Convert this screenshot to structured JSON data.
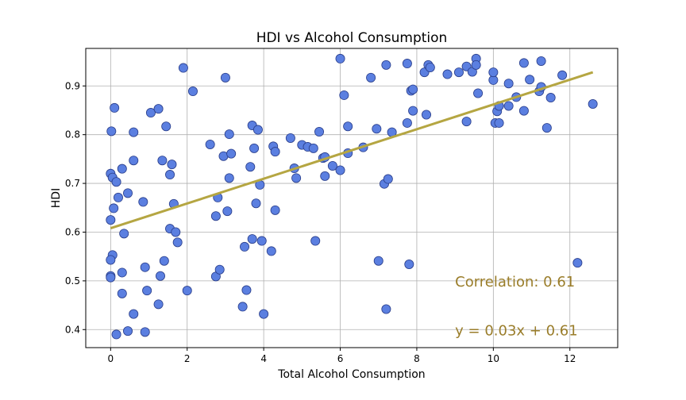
{
  "chart_data": {
    "type": "scatter",
    "title": "HDI vs Alcohol Consumption",
    "xlabel": "Total Alcohol Consumption",
    "ylabel": "HDI",
    "xlim": [
      -0.65,
      13.25
    ],
    "ylim": [
      0.363,
      0.977
    ],
    "xticks": [
      0,
      2,
      4,
      6,
      8,
      10,
      12
    ],
    "yticks": [
      0.4,
      0.5,
      0.6,
      0.7,
      0.8,
      0.9
    ],
    "grid": true,
    "colors": {
      "point_fill": "#5b7fe0",
      "point_edge": "#2a3e8a",
      "fit_line": "#b5a642",
      "annotation": "#9a7d2a"
    },
    "regression": {
      "slope": 0.0254,
      "intercept": 0.608,
      "x_range": [
        0,
        12.6
      ]
    },
    "annotations": [
      {
        "text": "Correlation:  0.61",
        "x": 9.0,
        "y": 0.498
      },
      {
        "text": "y = 0.03x + 0.61",
        "x": 9.0,
        "y": 0.398
      }
    ],
    "points": [
      [
        0.1,
        0.855
      ],
      [
        0.02,
        0.807
      ],
      [
        0.0,
        0.72
      ],
      [
        0.05,
        0.712
      ],
      [
        0.15,
        0.703
      ],
      [
        0.2,
        0.671
      ],
      [
        0.08,
        0.649
      ],
      [
        0.0,
        0.625
      ],
      [
        0.05,
        0.553
      ],
      [
        0.0,
        0.543
      ],
      [
        0.0,
        0.51
      ],
      [
        0.0,
        0.507
      ],
      [
        0.3,
        0.517
      ],
      [
        0.15,
        0.39
      ],
      [
        0.3,
        0.474
      ],
      [
        0.35,
        0.597
      ],
      [
        0.3,
        0.73
      ],
      [
        0.45,
        0.68
      ],
      [
        0.45,
        0.397
      ],
      [
        0.6,
        0.805
      ],
      [
        0.6,
        0.747
      ],
      [
        0.6,
        0.432
      ],
      [
        0.85,
        0.662
      ],
      [
        0.9,
        0.528
      ],
      [
        0.9,
        0.395
      ],
      [
        0.95,
        0.48
      ],
      [
        1.05,
        0.845
      ],
      [
        1.25,
        0.853
      ],
      [
        1.25,
        0.452
      ],
      [
        1.35,
        0.747
      ],
      [
        1.3,
        0.51
      ],
      [
        1.4,
        0.541
      ],
      [
        1.45,
        0.817
      ],
      [
        1.55,
        0.718
      ],
      [
        1.6,
        0.739
      ],
      [
        1.55,
        0.607
      ],
      [
        1.65,
        0.658
      ],
      [
        1.7,
        0.6
      ],
      [
        1.75,
        0.579
      ],
      [
        1.9,
        0.937
      ],
      [
        2.0,
        0.48
      ],
      [
        2.15,
        0.889
      ],
      [
        2.6,
        0.78
      ],
      [
        2.75,
        0.633
      ],
      [
        2.75,
        0.509
      ],
      [
        2.8,
        0.671
      ],
      [
        2.85,
        0.523
      ],
      [
        2.95,
        0.756
      ],
      [
        3.0,
        0.917
      ],
      [
        3.05,
        0.643
      ],
      [
        3.1,
        0.801
      ],
      [
        3.1,
        0.711
      ],
      [
        3.15,
        0.761
      ],
      [
        3.45,
        0.447
      ],
      [
        3.5,
        0.57
      ],
      [
        3.55,
        0.481
      ],
      [
        3.65,
        0.734
      ],
      [
        3.7,
        0.819
      ],
      [
        3.7,
        0.586
      ],
      [
        3.75,
        0.772
      ],
      [
        3.8,
        0.659
      ],
      [
        3.85,
        0.81
      ],
      [
        3.9,
        0.697
      ],
      [
        3.95,
        0.582
      ],
      [
        4.0,
        0.432
      ],
      [
        4.2,
        0.561
      ],
      [
        4.25,
        0.776
      ],
      [
        4.3,
        0.765
      ],
      [
        4.3,
        0.645
      ],
      [
        4.7,
        0.793
      ],
      [
        4.8,
        0.731
      ],
      [
        4.85,
        0.711
      ],
      [
        5.0,
        0.779
      ],
      [
        5.15,
        0.775
      ],
      [
        5.3,
        0.772
      ],
      [
        5.35,
        0.582
      ],
      [
        5.45,
        0.806
      ],
      [
        5.55,
        0.752
      ],
      [
        5.6,
        0.754
      ],
      [
        5.6,
        0.715
      ],
      [
        5.8,
        0.736
      ],
      [
        6.0,
        0.956
      ],
      [
        6.0,
        0.727
      ],
      [
        6.1,
        0.881
      ],
      [
        6.2,
        0.817
      ],
      [
        6.2,
        0.762
      ],
      [
        6.6,
        0.774
      ],
      [
        6.8,
        0.917
      ],
      [
        6.95,
        0.812
      ],
      [
        7.0,
        0.541
      ],
      [
        7.15,
        0.699
      ],
      [
        7.2,
        0.943
      ],
      [
        7.25,
        0.709
      ],
      [
        7.2,
        0.442
      ],
      [
        7.35,
        0.805
      ],
      [
        7.75,
        0.946
      ],
      [
        7.75,
        0.824
      ],
      [
        7.8,
        0.534
      ],
      [
        7.85,
        0.89
      ],
      [
        7.9,
        0.849
      ],
      [
        7.9,
        0.893
      ],
      [
        8.2,
        0.928
      ],
      [
        8.3,
        0.943
      ],
      [
        8.35,
        0.938
      ],
      [
        8.25,
        0.841
      ],
      [
        8.8,
        0.924
      ],
      [
        9.1,
        0.928
      ],
      [
        9.3,
        0.94
      ],
      [
        9.3,
        0.827
      ],
      [
        9.45,
        0.929
      ],
      [
        9.55,
        0.956
      ],
      [
        9.55,
        0.943
      ],
      [
        9.6,
        0.885
      ],
      [
        10.0,
        0.912
      ],
      [
        10.0,
        0.928
      ],
      [
        10.05,
        0.824
      ],
      [
        10.1,
        0.848
      ],
      [
        10.15,
        0.859
      ],
      [
        10.15,
        0.824
      ],
      [
        10.4,
        0.905
      ],
      [
        10.4,
        0.859
      ],
      [
        10.6,
        0.877
      ],
      [
        10.8,
        0.947
      ],
      [
        10.8,
        0.849
      ],
      [
        10.95,
        0.913
      ],
      [
        11.2,
        0.889
      ],
      [
        11.25,
        0.951
      ],
      [
        11.25,
        0.898
      ],
      [
        11.4,
        0.814
      ],
      [
        11.5,
        0.876
      ],
      [
        11.8,
        0.922
      ],
      [
        12.2,
        0.537
      ],
      [
        12.6,
        0.863
      ]
    ]
  }
}
